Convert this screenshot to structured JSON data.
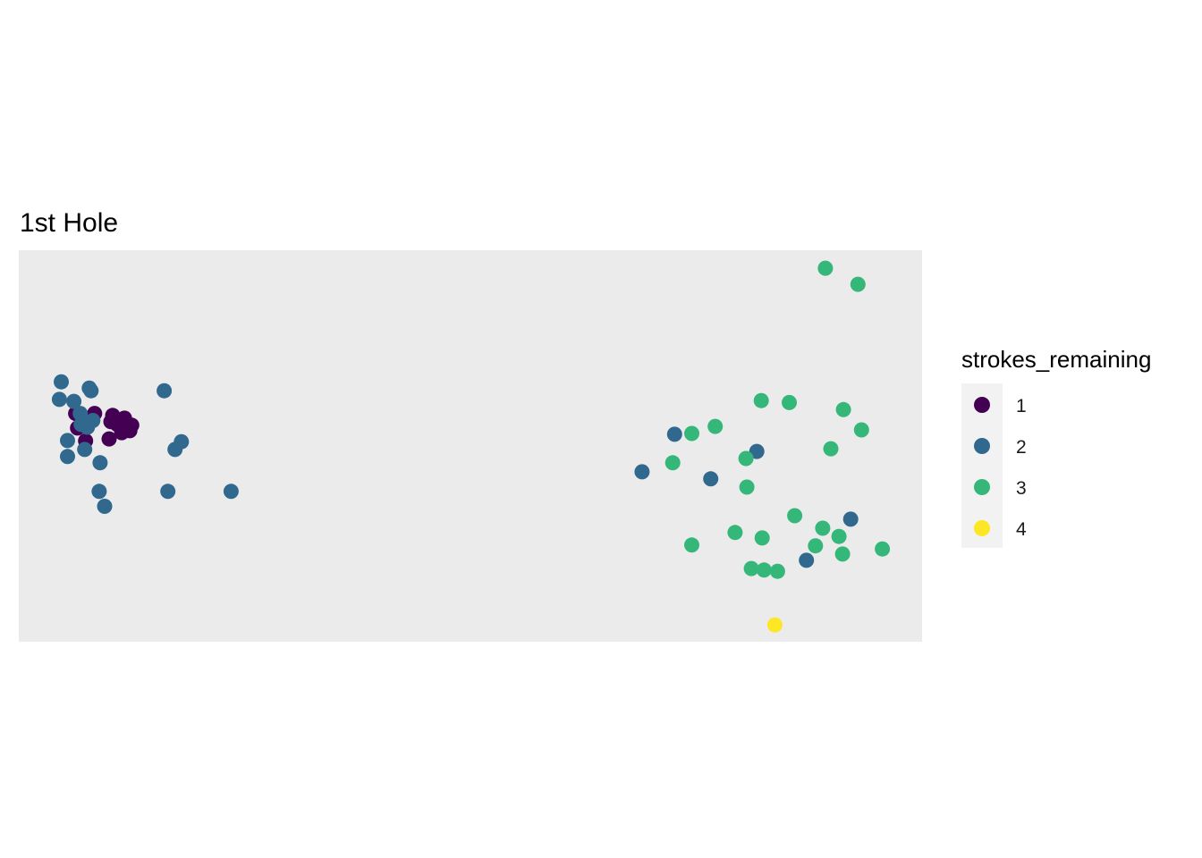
{
  "chart_data": {
    "type": "scatter",
    "title": "1st Hole",
    "xlabel": "",
    "ylabel": "",
    "xlim": [
      0,
      100
    ],
    "ylim": [
      0,
      100
    ],
    "grid": false,
    "axes_visible": false,
    "panel_background": "#ebebeb",
    "legend": {
      "title": "strokes_remaining",
      "position": "right",
      "background": "#f2f2f2"
    },
    "series": [
      {
        "name": "1",
        "color": "#440154",
        "points": [
          {
            "x": 6.3,
            "y": 58.3
          },
          {
            "x": 8.4,
            "y": 58.3
          },
          {
            "x": 10.4,
            "y": 57.8
          },
          {
            "x": 10.2,
            "y": 56.2
          },
          {
            "x": 10.9,
            "y": 55.5
          },
          {
            "x": 11.7,
            "y": 57.1
          },
          {
            "x": 12.5,
            "y": 55.3
          },
          {
            "x": 12.3,
            "y": 53.9
          },
          {
            "x": 11.3,
            "y": 55.5
          },
          {
            "x": 11.4,
            "y": 53.4
          },
          {
            "x": 10.0,
            "y": 51.8
          },
          {
            "x": 7.4,
            "y": 51.3
          },
          {
            "x": 6.5,
            "y": 54.6
          }
        ]
      },
      {
        "name": "2",
        "color": "#31688e",
        "points": [
          {
            "x": 4.7,
            "y": 66.4
          },
          {
            "x": 4.5,
            "y": 61.9
          },
          {
            "x": 6.1,
            "y": 61.4
          },
          {
            "x": 7.8,
            "y": 64.8
          },
          {
            "x": 8.0,
            "y": 64.1
          },
          {
            "x": 6.8,
            "y": 58.3
          },
          {
            "x": 8.2,
            "y": 56.5
          },
          {
            "x": 6.9,
            "y": 55.5
          },
          {
            "x": 7.6,
            "y": 54.8
          },
          {
            "x": 5.4,
            "y": 51.4
          },
          {
            "x": 7.3,
            "y": 49.1
          },
          {
            "x": 5.4,
            "y": 47.3
          },
          {
            "x": 9.0,
            "y": 45.7
          },
          {
            "x": 8.9,
            "y": 38.4
          },
          {
            "x": 9.5,
            "y": 34.6
          },
          {
            "x": 16.1,
            "y": 64.1
          },
          {
            "x": 18.0,
            "y": 51.1
          },
          {
            "x": 17.3,
            "y": 49.1
          },
          {
            "x": 16.5,
            "y": 38.4
          },
          {
            "x": 23.5,
            "y": 38.4
          },
          {
            "x": 72.6,
            "y": 53.0
          },
          {
            "x": 81.7,
            "y": 48.6
          },
          {
            "x": 69.0,
            "y": 43.4
          },
          {
            "x": 76.6,
            "y": 41.6
          },
          {
            "x": 92.1,
            "y": 31.3
          },
          {
            "x": 87.2,
            "y": 20.8
          }
        ]
      },
      {
        "name": "3",
        "color": "#35b779",
        "points": [
          {
            "x": 89.3,
            "y": 95.4
          },
          {
            "x": 92.9,
            "y": 91.3
          },
          {
            "x": 82.2,
            "y": 61.6
          },
          {
            "x": 85.3,
            "y": 61.1
          },
          {
            "x": 91.3,
            "y": 59.3
          },
          {
            "x": 93.3,
            "y": 54.1
          },
          {
            "x": 77.1,
            "y": 55.0
          },
          {
            "x": 74.5,
            "y": 53.2
          },
          {
            "x": 89.9,
            "y": 49.3
          },
          {
            "x": 80.5,
            "y": 46.8
          },
          {
            "x": 72.4,
            "y": 45.7
          },
          {
            "x": 80.6,
            "y": 39.5
          },
          {
            "x": 85.9,
            "y": 32.2
          },
          {
            "x": 89.0,
            "y": 29.0
          },
          {
            "x": 79.3,
            "y": 27.9
          },
          {
            "x": 82.3,
            "y": 26.5
          },
          {
            "x": 90.8,
            "y": 26.9
          },
          {
            "x": 74.5,
            "y": 24.7
          },
          {
            "x": 88.2,
            "y": 24.5
          },
          {
            "x": 91.2,
            "y": 22.4
          },
          {
            "x": 95.6,
            "y": 23.7
          },
          {
            "x": 81.1,
            "y": 18.7
          },
          {
            "x": 82.5,
            "y": 18.3
          },
          {
            "x": 84.0,
            "y": 18.0
          }
        ]
      },
      {
        "name": "4",
        "color": "#fde725",
        "points": [
          {
            "x": 83.7,
            "y": 4.3
          }
        ]
      }
    ]
  }
}
